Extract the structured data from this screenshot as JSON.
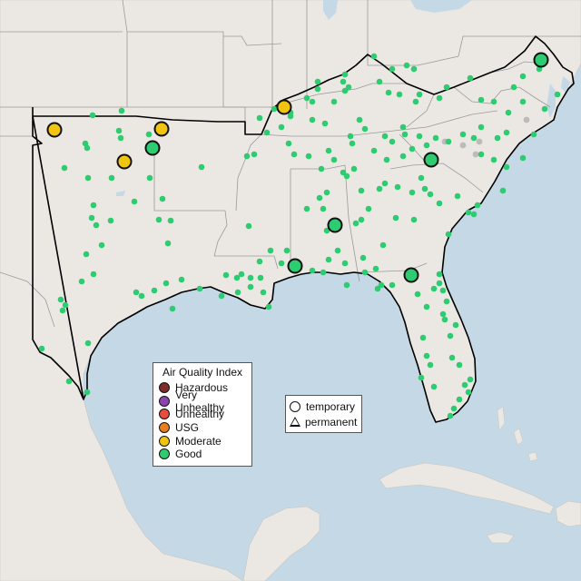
{
  "legend": {
    "title": "Air Quality Index",
    "items": [
      {
        "label": "Hazardous",
        "color": "#7e2b2b"
      },
      {
        "label": "Very Unhealthy",
        "color": "#8e44ad"
      },
      {
        "label": "Unhealthy",
        "color": "#e74c3c"
      },
      {
        "label": "USG",
        "color": "#e67e22"
      },
      {
        "label": "Moderate",
        "color": "#f1c40f"
      },
      {
        "label": "Good",
        "color": "#2ecc71"
      }
    ]
  },
  "type_legend": {
    "temporary": "temporary",
    "permanent": "permanent"
  },
  "colors": {
    "water": "#c4d8e6",
    "land": "#ebe8e4",
    "good": "#2ecc71",
    "moderate": "#f1c40f",
    "no_data": "#bbbbbb"
  }
}
